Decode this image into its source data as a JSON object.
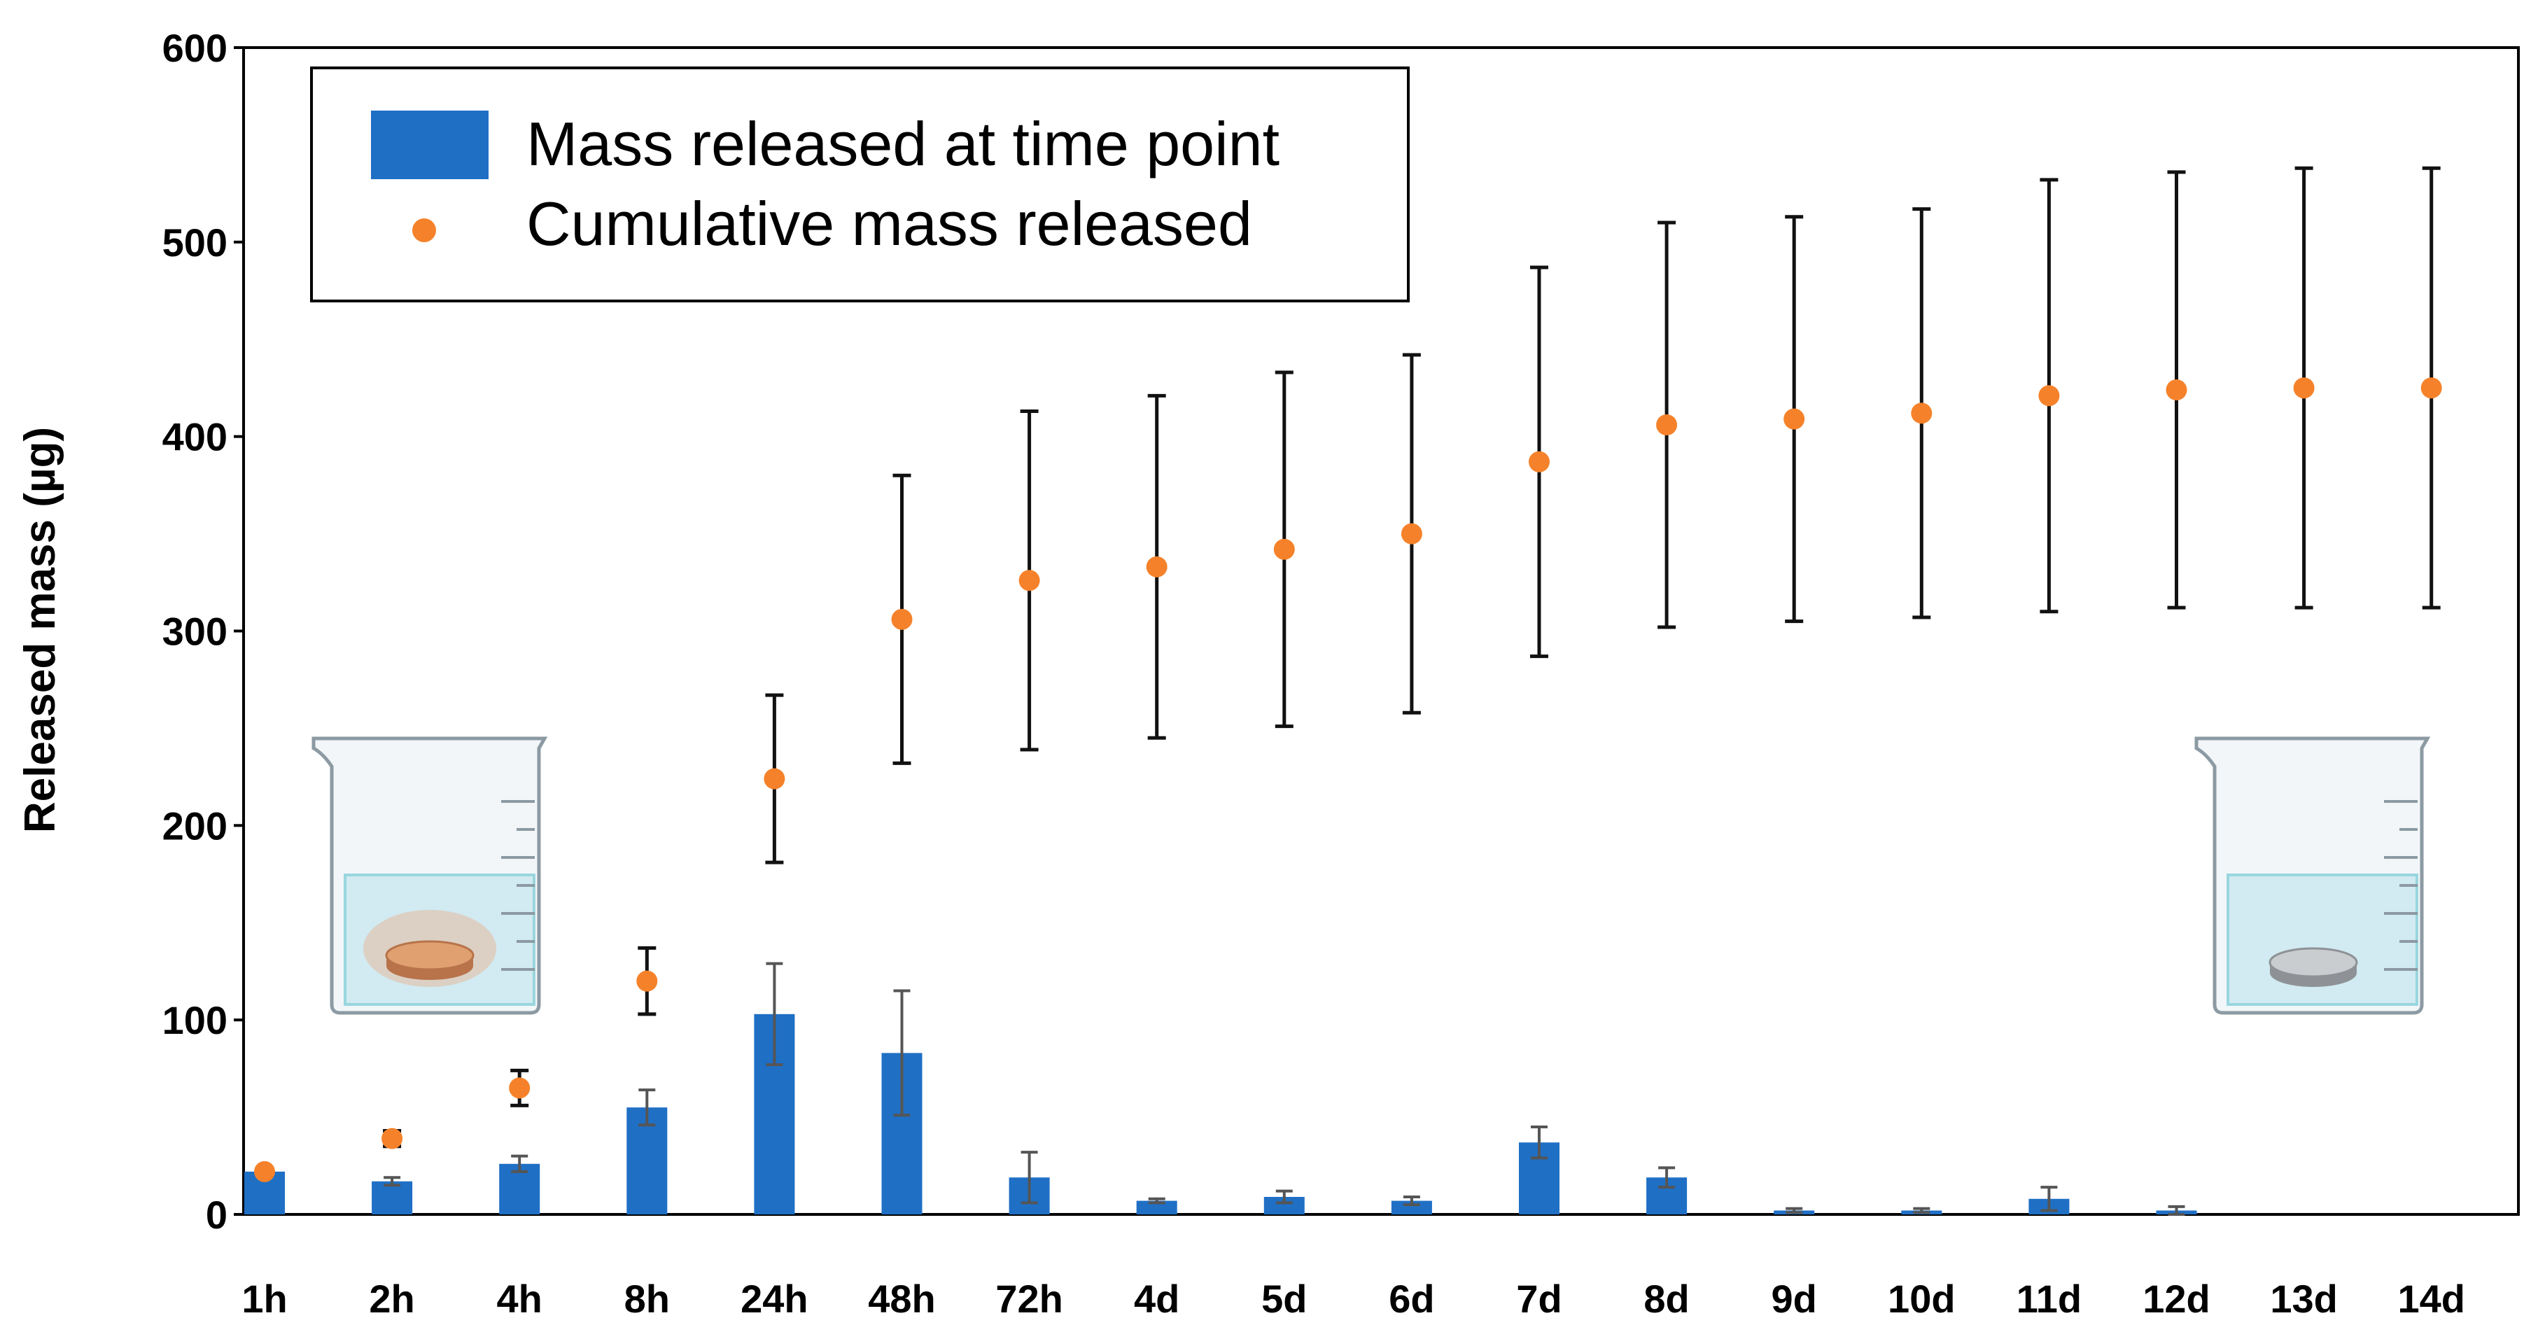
{
  "chart_data": {
    "type": "bar",
    "title": "",
    "xlabel": "",
    "ylabel": "Released mass (µg)",
    "ylim": [
      0,
      600
    ],
    "yticks": [
      0,
      100,
      200,
      300,
      400,
      500,
      600
    ],
    "grid": false,
    "legend_position": "top-left",
    "categories": [
      "1h",
      "2h",
      "4h",
      "8h",
      "24h",
      "48h",
      "72h",
      "4d",
      "5d",
      "6d",
      "7d",
      "8d",
      "9d",
      "10d",
      "11d",
      "12d",
      "13d",
      "14d"
    ],
    "series": [
      {
        "name": "Mass released at time point",
        "kind": "bar",
        "color": "#1f6fc5",
        "values": [
          22,
          17,
          26,
          55,
          103,
          83,
          19,
          7,
          9,
          7,
          37,
          19,
          2,
          2,
          8,
          2,
          0,
          0
        ],
        "err": [
          0,
          2,
          4,
          9,
          26,
          32,
          13,
          1,
          3,
          2,
          8,
          5,
          1,
          1,
          6,
          2,
          0,
          0
        ]
      },
      {
        "name": "Cumulative mass released",
        "kind": "scatter",
        "color": "#f5822a",
        "values": [
          22,
          39,
          65,
          120,
          224,
          306,
          326,
          333,
          342,
          350,
          387,
          406,
          409,
          412,
          421,
          424,
          425,
          425
        ],
        "err": [
          0,
          4,
          9,
          17,
          43,
          74,
          87,
          88,
          91,
          92,
          100,
          104,
          104,
          105,
          111,
          112,
          113,
          113
        ]
      }
    ],
    "error_bar_color": "#111111"
  }
}
